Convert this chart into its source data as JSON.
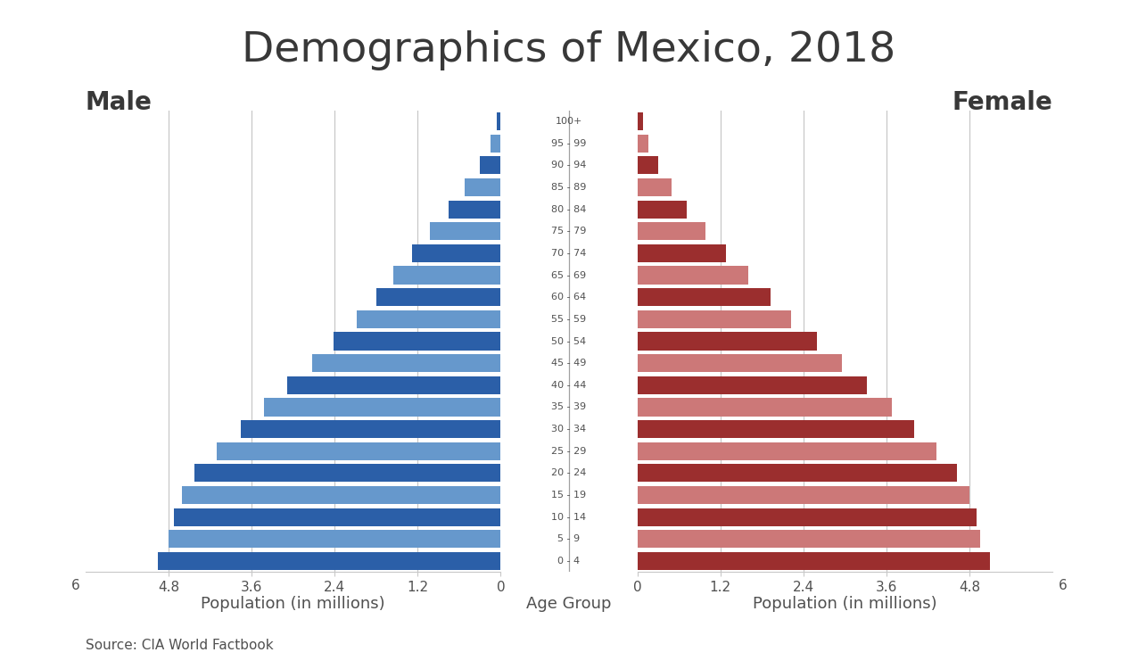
{
  "title": "Demographics of Mexico, 2018",
  "age_groups": [
    "0 - 4",
    "5 - 9",
    "10 - 14",
    "15 - 19",
    "20 - 24",
    "25 - 29",
    "30 - 34",
    "35 - 39",
    "40 - 44",
    "45 - 49",
    "50 - 54",
    "55 - 59",
    "60 - 64",
    "65 - 69",
    "70 - 74",
    "75 - 79",
    "80 - 84",
    "85 - 89",
    "90 - 94",
    "95 - 99",
    "100+"
  ],
  "male_values": [
    4.95,
    4.8,
    4.72,
    4.6,
    4.42,
    4.1,
    3.75,
    3.42,
    3.08,
    2.72,
    2.42,
    2.08,
    1.8,
    1.55,
    1.28,
    1.02,
    0.75,
    0.52,
    0.3,
    0.15,
    0.06
  ],
  "female_values": [
    5.1,
    4.95,
    4.9,
    4.8,
    4.62,
    4.32,
    4.0,
    3.68,
    3.32,
    2.95,
    2.6,
    2.22,
    1.92,
    1.6,
    1.28,
    0.98,
    0.72,
    0.5,
    0.3,
    0.16,
    0.08
  ],
  "male_dark": "#2B5FA8",
  "male_light": "#6698CC",
  "female_dark": "#9B2E2E",
  "female_light": "#CC7878",
  "xlabel_left": "Population (in millions)",
  "xlabel_right": "Population (in millions)",
  "xlabel_center": "Age Group",
  "label_male": "Male",
  "label_female": "Female",
  "source": "Source: CIA World Factbook",
  "xlim": 6.0,
  "xticks": [
    0,
    1.2,
    2.4,
    3.6,
    4.8
  ],
  "xtick_labels": [
    "0",
    "1.2",
    "2.4",
    "3.6",
    "4.8"
  ],
  "background_color": "#ffffff",
  "grid_color": "#C8C8C8",
  "text_color": "#505050",
  "bar_height": 0.82
}
